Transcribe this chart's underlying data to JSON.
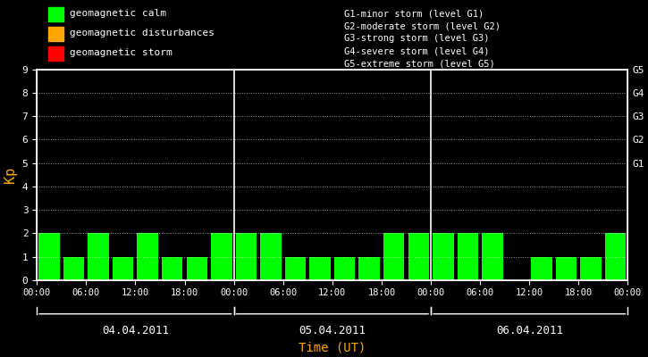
{
  "bg_color": "#000000",
  "fg_color": "#ffffff",
  "bar_color_calm": "#00ff00",
  "bar_color_disturb": "#ffa500",
  "bar_color_storm": "#ff0000",
  "kp_values": [
    2,
    1,
    2,
    1,
    2,
    1,
    1,
    2,
    2,
    2,
    1,
    1,
    1,
    1,
    2,
    2,
    2,
    2,
    2,
    0,
    1,
    1,
    1,
    2
  ],
  "ylim": [
    0,
    9
  ],
  "yticks": [
    0,
    1,
    2,
    3,
    4,
    5,
    6,
    7,
    8,
    9
  ],
  "xtick_labels": [
    "00:00",
    "06:00",
    "12:00",
    "18:00",
    "00:00",
    "06:00",
    "12:00",
    "18:00",
    "00:00",
    "06:00",
    "12:00",
    "18:00",
    "00:00"
  ],
  "date_labels": [
    "04.04.2011",
    "05.04.2011",
    "06.04.2011"
  ],
  "ylabel": "Kp",
  "xlabel": "Time (UT)",
  "ylabel_color": "#ffa500",
  "xlabel_color": "#ffa500",
  "grid_color": "#ffffff",
  "title_color": "#ffffff",
  "g_labels": [
    "G5",
    "G4",
    "G3",
    "G2",
    "G1"
  ],
  "g_levels": [
    9,
    8,
    7,
    6,
    5
  ],
  "legend_items": [
    {
      "color": "#00ff00",
      "label": "geomagnetic calm"
    },
    {
      "color": "#ffa500",
      "label": "geomagnetic disturbances"
    },
    {
      "color": "#ff0000",
      "label": "geomagnetic storm"
    }
  ],
  "storm_legend": [
    "G1-minor storm (level G1)",
    "G2-moderate storm (level G2)",
    "G3-strong storm (level G3)",
    "G4-severe storm (level G4)",
    "G5-extreme storm (level G5)"
  ],
  "calm_threshold": 3,
  "disturb_threshold": 5,
  "font_family": "monospace"
}
